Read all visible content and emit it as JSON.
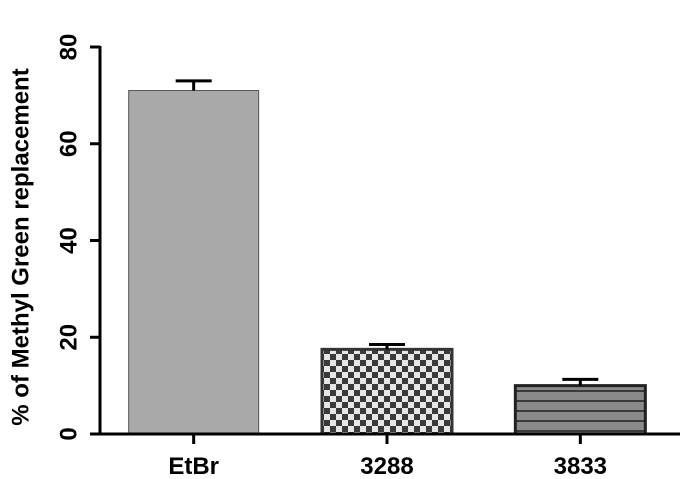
{
  "chart_data": {
    "type": "bar",
    "ylabel": "% of Methyl Green replacement",
    "xlabel": "",
    "ylim": [
      0,
      80
    ],
    "yticks": [
      0,
      20,
      40,
      60,
      80
    ],
    "categories": [
      "EtBr",
      "3288",
      "3833"
    ],
    "values": [
      71,
      17.5,
      10
    ],
    "errors": [
      2,
      1,
      1.3
    ],
    "fills": [
      "solid-gray",
      "checkerboard",
      "horizontal-stripes"
    ],
    "colors": {
      "bar1": "#a9a9a9",
      "bar1_stroke": "#555555",
      "check_dark": "#3a3a3a",
      "check_light": "#e6e6e6",
      "stripe_fill": "#8a8a8a",
      "stripe_line": "#3a3a3a",
      "axis": "#000000"
    },
    "grid": false,
    "legend": "none"
  }
}
